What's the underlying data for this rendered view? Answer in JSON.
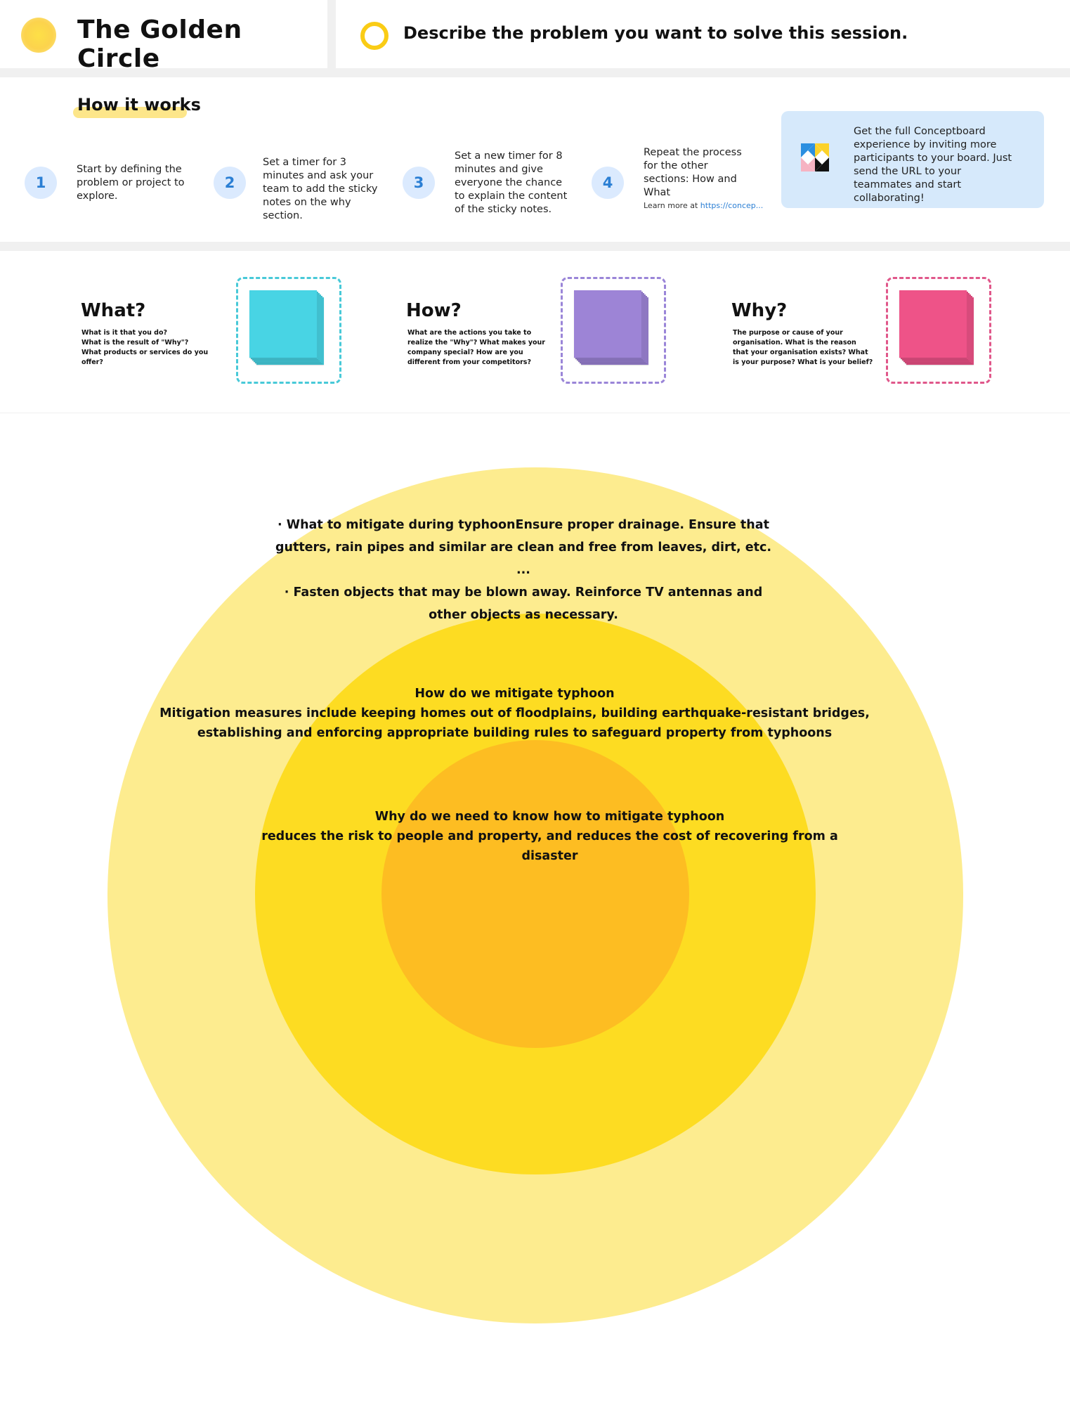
{
  "header": {
    "title": "The Golden Circle",
    "problem_prompt": "Describe the problem you want to solve this session."
  },
  "how_it_works": {
    "heading": "How it works",
    "steps": [
      {
        "number": "1",
        "text": "Start by defining the problem or project to explore."
      },
      {
        "number": "2",
        "text": "Set a timer for 3 minutes and ask your team to add the sticky notes on the why section."
      },
      {
        "number": "3",
        "text": "Set a new timer for 8 minutes and give everyone the chance to explain the content of the sticky notes."
      },
      {
        "number": "4",
        "text": "Repeat the process for the other sections: How and What"
      }
    ],
    "learn_more_prefix": "Learn more at",
    "learn_more_link": "https://concep...",
    "promo_text": "Get the full Conceptboard experience by inviting more participants to your board. Just send the URL to your teammates and start collaborating!"
  },
  "sections": [
    {
      "title": "What?",
      "description": "What is it that you do?\nWhat is the result of \"Why\"?\nWhat products or services do you offer?",
      "color": "#48d4e4",
      "border_color": "#48c9d8"
    },
    {
      "title": "How?",
      "description": "What are the actions you take to realize the \"Why\"? What makes your company special? How are you different from your competitors?",
      "color": "#9d84d6",
      "border_color": "#9a85d8"
    },
    {
      "title": "Why?",
      "description": "The purpose or cause of your organisation. What is the reason that your organisation exists? What is your purpose? What is your belief?",
      "color": "#ee5388",
      "border_color": "#e0578a"
    }
  ],
  "circles": {
    "outer_text": "· What to mitigate during typhoonEnsure proper drainage. Ensure that gutters, rain pipes and similar are clean and free from leaves, dirt, etc. ...\n· Fasten objects that may be blown away. Reinforce TV antennas and other objects as necessary.",
    "middle_title": "How do we mitigate typhoon",
    "middle_text": "Mitigation measures include keeping homes out of floodplains, building earthquake-resistant bridges, establishing and enforcing appropriate building rules to safeguard property from typhoons",
    "inner_title": "Why do we need to know how to mitigate typhoon",
    "inner_text": "reduces the risk to people and property, and reduces the cost of recovering from a disaster",
    "colors": {
      "outer": "#fdec8f",
      "middle": "#fddc22",
      "inner": "#fdbd22"
    }
  },
  "icons": {
    "title_icon": "sun-icon",
    "problem_icon": "ring-icon",
    "promo_icon": "conceptboard-logo-icon"
  }
}
